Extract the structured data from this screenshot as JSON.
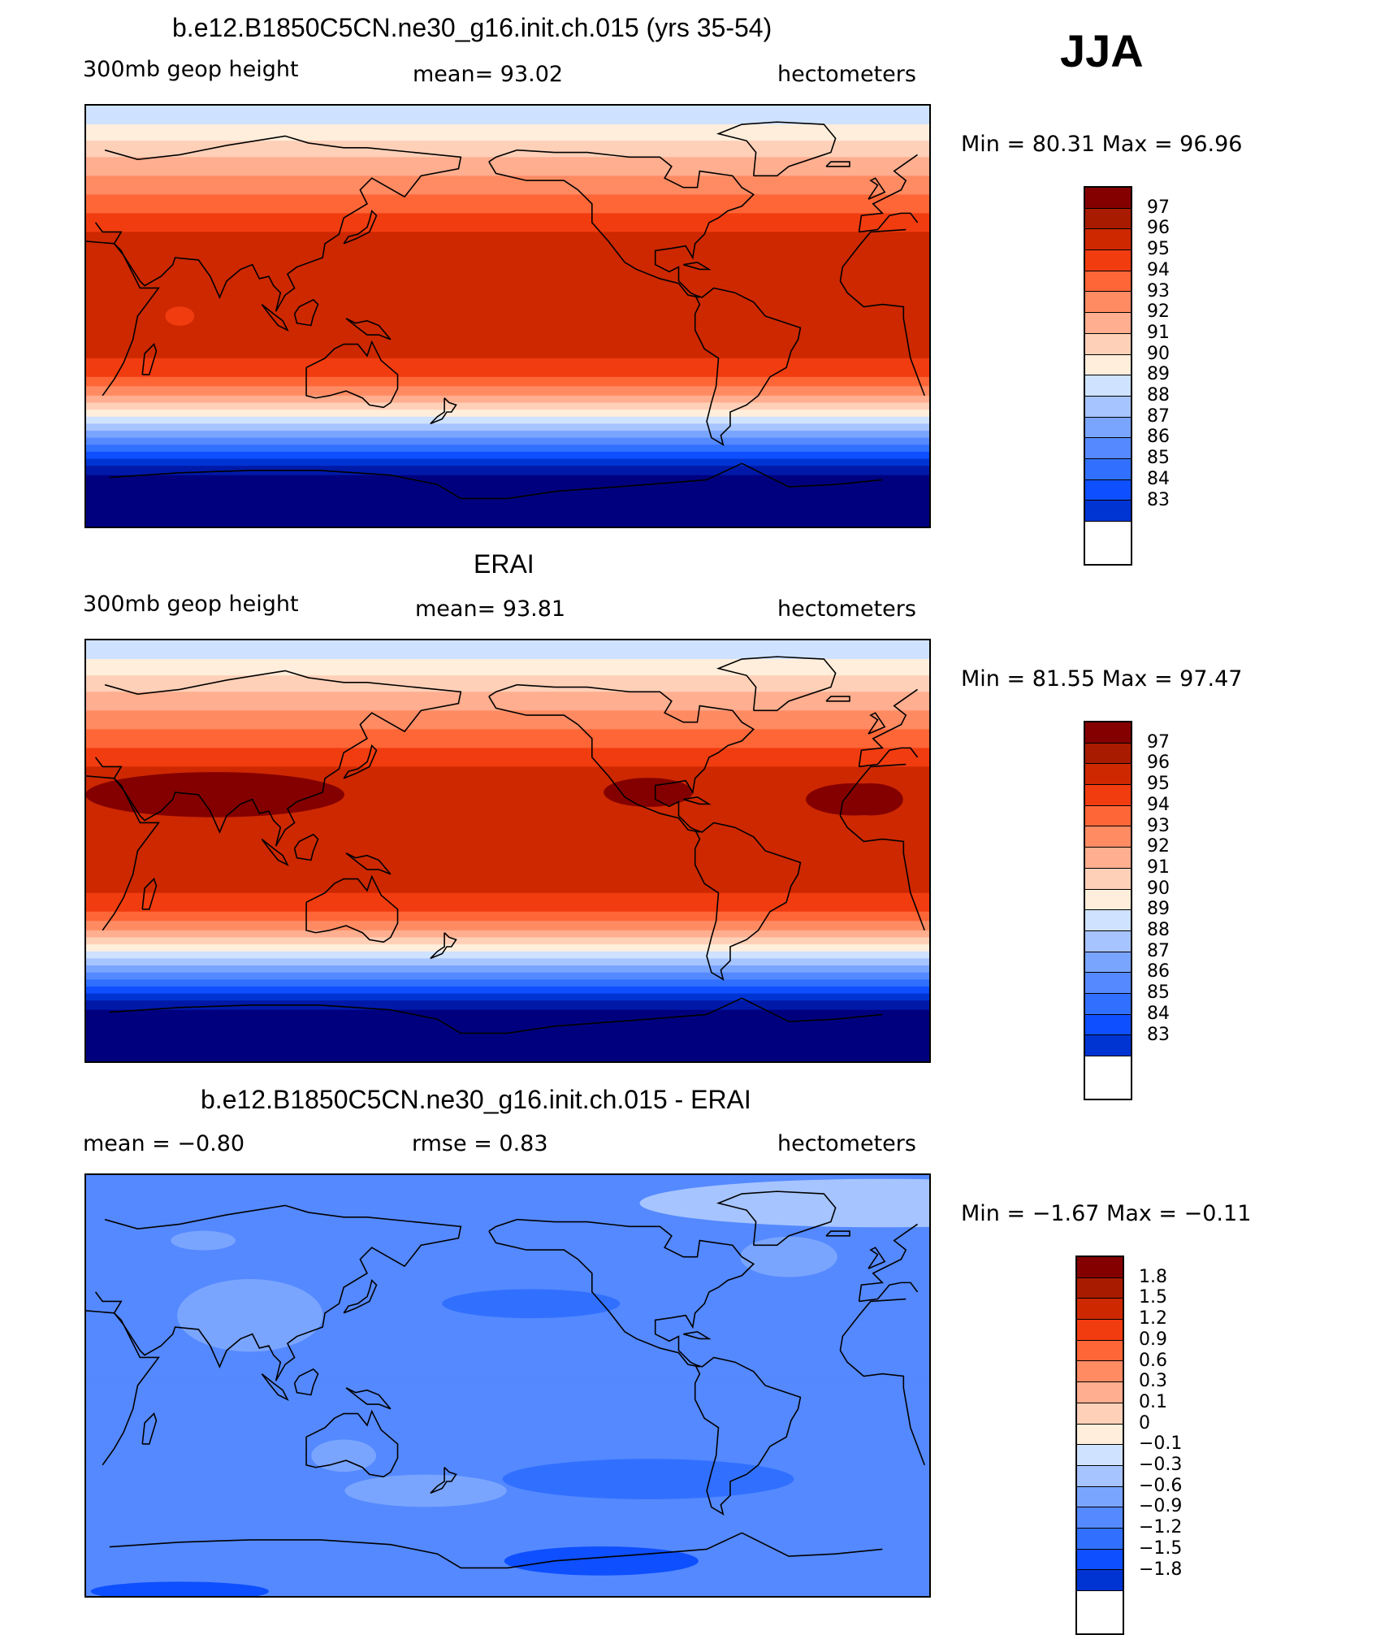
{
  "season": "JJA",
  "palette": [
    "#00007f",
    "#0019a8",
    "#0034d2",
    "#0e4fff",
    "#3170ff",
    "#5589ff",
    "#7aa5ff",
    "#a6c4ff",
    "#cfe2ff",
    "#ffeedb",
    "#ffd0b8",
    "#ffae8f",
    "#ff8b63",
    "#ff6637",
    "#f13c10",
    "#cd2800",
    "#a81b00",
    "#840000"
  ],
  "diff_palette": [
    "#00007f",
    "#0019a8",
    "#0034d2",
    "#0e4fff",
    "#3170ff",
    "#5589ff",
    "#7aa5ff",
    "#a6c4ff",
    "#cfe2ff",
    "#ffeedb",
    "#ffd0b8",
    "#ffae8f",
    "#ff8b63",
    "#ff6637",
    "#f13c10",
    "#cd2800",
    "#a81b00",
    "#840000"
  ],
  "panels": [
    {
      "title": "b.e12.B1850C5CN.ne30_g16.init.ch.015 (yrs 35-54)",
      "left_label": "300mb  geop  height",
      "center_label": "mean=   93.02",
      "right_label": "hectometers",
      "minmax": "Min  =   80.31  Max  =   96.96",
      "levels": [
        "97",
        "96",
        "95",
        "94",
        "93",
        "92",
        "91",
        "90",
        "89",
        "88",
        "87",
        "86",
        "85",
        "84",
        "83"
      ],
      "field": "model"
    },
    {
      "title": "ERAI",
      "left_label": "300mb  geop  height",
      "center_label": "mean=   93.81",
      "right_label": "hectometers",
      "minmax": "Min  =   81.55  Max  =   97.47",
      "levels": [
        "97",
        "96",
        "95",
        "94",
        "93",
        "92",
        "91",
        "90",
        "89",
        "88",
        "87",
        "86",
        "85",
        "84",
        "83"
      ],
      "field": "obs"
    },
    {
      "title": "b.e12.B1850C5CN.ne30_g16.init.ch.015 - ERAI",
      "left_label": "mean  =    −0.80",
      "center_label": "rmse  =     0.83",
      "right_label": "hectometers",
      "minmax": "Min  =   −1.67  Max  =   −0.11",
      "levels": [
        "1.8",
        "1.5",
        "1.2",
        "0.9",
        "0.6",
        "0.3",
        "0.1",
        "0",
        "−0.1",
        "−0.3",
        "−0.6",
        "−0.9",
        "−1.2",
        "−1.5",
        "−1.8"
      ],
      "field": "diff"
    }
  ]
}
